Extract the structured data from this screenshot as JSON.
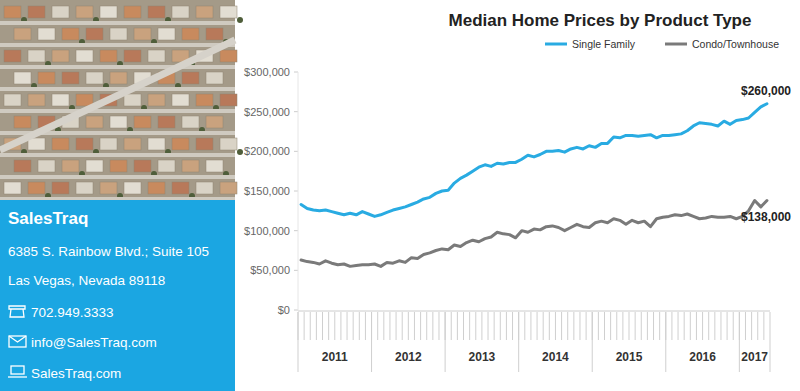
{
  "chart_data": {
    "type": "line",
    "title": "Median Home Prices by Product Type",
    "categories": [
      "2011",
      null,
      null,
      null,
      null,
      null,
      null,
      null,
      null,
      null,
      null,
      null,
      "2012",
      null,
      null,
      null,
      null,
      null,
      null,
      null,
      null,
      null,
      null,
      null,
      "2013",
      null,
      null,
      null,
      null,
      null,
      null,
      null,
      null,
      null,
      null,
      null,
      "2014",
      null,
      null,
      null,
      null,
      null,
      null,
      null,
      null,
      null,
      null,
      null,
      "2015",
      null,
      null,
      null,
      null,
      null,
      null,
      null,
      null,
      null,
      null,
      null,
      "2016",
      null,
      null,
      null,
      null,
      null,
      null,
      null,
      null,
      null,
      null,
      null,
      "2017",
      null,
      null,
      null,
      null
    ],
    "series": [
      {
        "name": "Single Family",
        "color": "#29abe2",
        "values": [
          133000,
          128000,
          126000,
          125000,
          126000,
          124000,
          122000,
          120000,
          122000,
          120000,
          124000,
          121000,
          118000,
          120000,
          123000,
          126000,
          128000,
          130000,
          133000,
          136000,
          140000,
          142000,
          147000,
          150000,
          151000,
          160000,
          166000,
          170000,
          175000,
          180000,
          183000,
          181000,
          185000,
          184000,
          186000,
          186000,
          190000,
          195000,
          193000,
          196000,
          200000,
          200000,
          201000,
          199000,
          203000,
          205000,
          203000,
          207000,
          205000,
          210000,
          210000,
          218000,
          217000,
          220000,
          220000,
          219000,
          220000,
          221000,
          217000,
          220000,
          220000,
          221000,
          222000,
          226000,
          232000,
          236000,
          235000,
          234000,
          232000,
          238000,
          234000,
          239000,
          240000,
          242000,
          249000,
          256000,
          260000
        ]
      },
      {
        "name": "Condo/Townhouse",
        "color": "#7a7a7a",
        "values": [
          63000,
          61000,
          60000,
          58000,
          62000,
          59000,
          57000,
          58000,
          55000,
          56000,
          57000,
          57000,
          58000,
          55000,
          60000,
          59000,
          62000,
          60000,
          66000,
          65000,
          70000,
          72000,
          75000,
          77000,
          76000,
          82000,
          80000,
          85000,
          88000,
          86000,
          90000,
          92000,
          98000,
          96000,
          95000,
          91000,
          100000,
          98000,
          102000,
          101000,
          105000,
          106000,
          104000,
          100000,
          104000,
          108000,
          105000,
          104000,
          110000,
          112000,
          110000,
          115000,
          113000,
          108000,
          113000,
          110000,
          112000,
          105000,
          115000,
          117000,
          118000,
          120000,
          119000,
          121000,
          118000,
          115000,
          116000,
          118000,
          117000,
          117000,
          118000,
          115000,
          118000,
          125000,
          138000,
          130000,
          138000
        ]
      }
    ],
    "annotations": [
      "$260,000",
      "$138,000"
    ],
    "ylim": [
      0,
      300000
    ],
    "yticks": [
      {
        "value": 0,
        "label": "$0"
      },
      {
        "value": 50000,
        "label": "$50,000"
      },
      {
        "value": 100000,
        "label": "$100,000"
      },
      {
        "value": 150000,
        "label": "$150,000"
      },
      {
        "value": 200000,
        "label": "$200,000"
      },
      {
        "value": 250000,
        "label": "$250,000"
      },
      {
        "value": 300000,
        "label": "$300,000"
      }
    ],
    "grid": false,
    "legend": "top-right"
  },
  "sidebar": {
    "company": "SalesTraq",
    "address": [
      "6385 S. Rainbow Blvd.; Suite 105",
      "Las Vegas, Nevada 89118"
    ],
    "phone": "702.949.3333",
    "email": "info@SalesTraq.com",
    "website": "SalesTraq.com"
  }
}
